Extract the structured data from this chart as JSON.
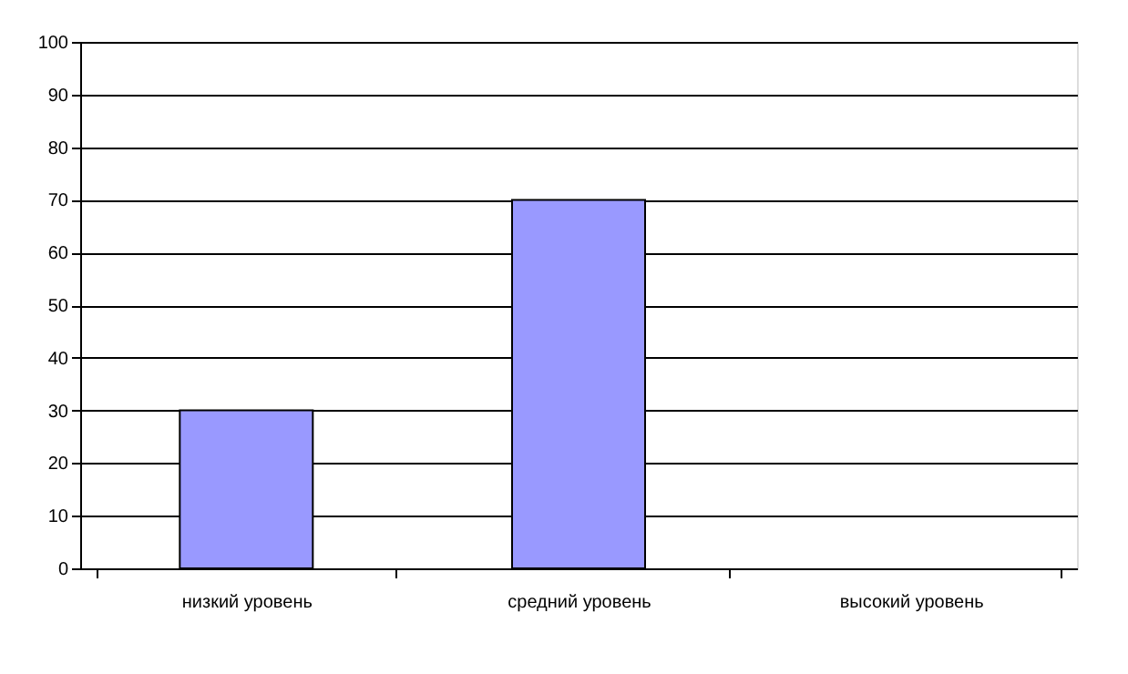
{
  "chart_data": {
    "type": "bar",
    "categories": [
      "низкий уровень",
      "средний уровень",
      "высокий уровень"
    ],
    "series": [
      {
        "color": "#9999ff",
        "values": [
          30,
          70,
          null
        ]
      }
    ],
    "ylim": [
      0,
      100
    ],
    "yticks": [
      0,
      10,
      20,
      30,
      40,
      50,
      60,
      70,
      80,
      90,
      100
    ],
    "grid": "y",
    "legend": false
  }
}
